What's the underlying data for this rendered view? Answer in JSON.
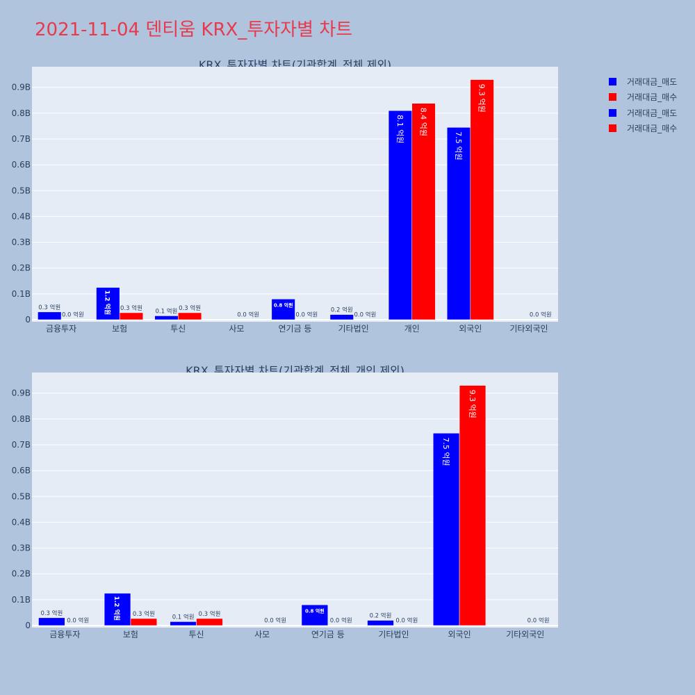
{
  "page": {
    "title": "2021-11-04 덴티움 KRX_투자자별 차트"
  },
  "colors": {
    "sell": "#0000ff",
    "buy": "#ff0000",
    "plot_bg": "#e5ecf6",
    "page_bg": "#b0c4de"
  },
  "legend": [
    {
      "label": "거래대금_매도",
      "color": "#0000ff"
    },
    {
      "label": "거래대금_매수",
      "color": "#ff0000"
    },
    {
      "label": "거래대금_매도",
      "color": "#0000ff"
    },
    {
      "label": "거래대금_매수",
      "color": "#ff0000"
    }
  ],
  "chart_data": [
    {
      "type": "bar",
      "title": "KRX_투자자별 차트(기관합계_전체 제외)",
      "categories": [
        "금융투자",
        "보험",
        "투신",
        "사모",
        "연기금 등",
        "기타법인",
        "개인",
        "외국인",
        "기타외국인"
      ],
      "series": [
        {
          "name": "거래대금_매도",
          "values": [
            0.03,
            0.125,
            0.015,
            0.0,
            0.08,
            0.02,
            0.81,
            0.745,
            0.0
          ],
          "labels": [
            "0.3 억원",
            "1.2 억원",
            "0.1 억원",
            "",
            "0.8 억원",
            "0.2 억원",
            "8.1 억원",
            "7.5 억원",
            ""
          ]
        },
        {
          "name": "거래대금_매수",
          "values": [
            0.001,
            0.027,
            0.027,
            0.001,
            0.001,
            0.001,
            0.838,
            0.93,
            0.001
          ],
          "labels": [
            "0.0 억원",
            "0.3 억원",
            "0.3 억원",
            "0.0 억원",
            "0.0 억원",
            "0.0 억원",
            "8.4 억원",
            "9.3 억원",
            "0.0 억원"
          ]
        }
      ],
      "yticks": [
        "0",
        "0.1B",
        "0.2B",
        "0.3B",
        "0.4B",
        "0.5B",
        "0.6B",
        "0.7B",
        "0.8B",
        "0.9B"
      ],
      "ylim": [
        0,
        0.98
      ],
      "xlabel": "",
      "ylabel": "",
      "grid": true
    },
    {
      "type": "bar",
      "title": "KRX_투자자별 차트(기관합계_전체_개인 제외)",
      "categories": [
        "금융투자",
        "보험",
        "투신",
        "사모",
        "연기금 등",
        "기타법인",
        "외국인",
        "기타외국인"
      ],
      "series": [
        {
          "name": "거래대금_매도",
          "values": [
            0.03,
            0.125,
            0.015,
            0.0,
            0.08,
            0.02,
            0.745,
            0.0
          ],
          "labels": [
            "0.3 억원",
            "1.2 억원",
            "0.1 억원",
            "",
            "0.8 억원",
            "0.2 억원",
            "7.5 억원",
            ""
          ]
        },
        {
          "name": "거래대금_매수",
          "values": [
            0.001,
            0.027,
            0.027,
            0.001,
            0.001,
            0.001,
            0.93,
            0.001
          ],
          "labels": [
            "0.0 억원",
            "0.3 억원",
            "0.3 억원",
            "0.0 억원",
            "0.0 억원",
            "0.0 억원",
            "9.3 억원",
            "0.0 억원"
          ]
        }
      ],
      "yticks": [
        "0",
        "0.1B",
        "0.2B",
        "0.3B",
        "0.4B",
        "0.5B",
        "0.6B",
        "0.7B",
        "0.8B",
        "0.9B"
      ],
      "ylim": [
        0,
        0.98
      ],
      "xlabel": "",
      "ylabel": "",
      "grid": true
    }
  ]
}
